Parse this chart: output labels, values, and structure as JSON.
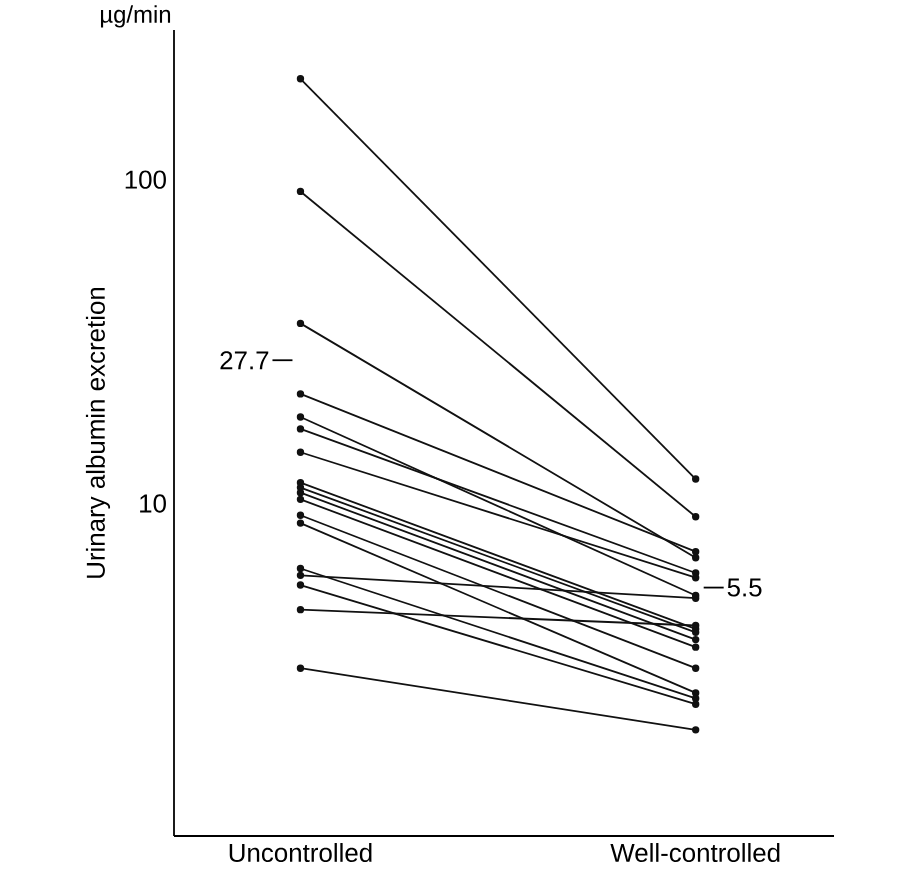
{
  "chart_data": {
    "type": "line",
    "ylabel": "Urinary albumin excretion",
    "categories": [
      "Uncontrolled",
      "Well-controlled"
    ],
    "log": "y",
    "ylim": [
      0.94,
      290
    ],
    "yticks": [
      10,
      100
    ],
    "grid": false,
    "marker": "circle",
    "line_style": "solid",
    "annotations": [
      "µg/min"
    ],
    "ref_lines": [
      {
        "axis": "y",
        "value": 27.7,
        "label": "27.7"
      },
      {
        "axis": "y",
        "value": 5.5,
        "label": "5.5"
      }
    ],
    "series": [
      {
        "color": "#111111",
        "values": [
          205,
          11.9
        ]
      },
      {
        "color": "#111111",
        "values": [
          92,
          9.1
        ]
      },
      {
        "color": "#111111",
        "values": [
          36,
          6.8
        ]
      },
      {
        "color": "#111111",
        "values": [
          21.8,
          7.1
        ]
      },
      {
        "color": "#111111",
        "values": [
          18.5,
          5.2
        ]
      },
      {
        "color": "#111111",
        "values": [
          17.0,
          6.1
        ]
      },
      {
        "color": "#111111",
        "values": [
          14.4,
          5.9
        ]
      },
      {
        "color": "#111111",
        "values": [
          11.6,
          4.1
        ]
      },
      {
        "color": "#111111",
        "values": [
          11.2,
          4.0
        ]
      },
      {
        "color": "#111111",
        "values": [
          10.8,
          3.8
        ]
      },
      {
        "color": "#111111",
        "values": [
          10.3,
          3.6
        ]
      },
      {
        "color": "#111111",
        "values": [
          9.2,
          3.1
        ]
      },
      {
        "color": "#111111",
        "values": [
          8.7,
          2.6
        ]
      },
      {
        "color": "#111111",
        "values": [
          6.3,
          2.5
        ]
      },
      {
        "color": "#111111",
        "values": [
          6.0,
          5.1
        ]
      },
      {
        "color": "#111111",
        "values": [
          5.6,
          2.4
        ]
      },
      {
        "color": "#111111",
        "values": [
          4.7,
          4.2
        ]
      },
      {
        "color": "#111111",
        "values": [
          3.1,
          2.0
        ]
      }
    ]
  }
}
